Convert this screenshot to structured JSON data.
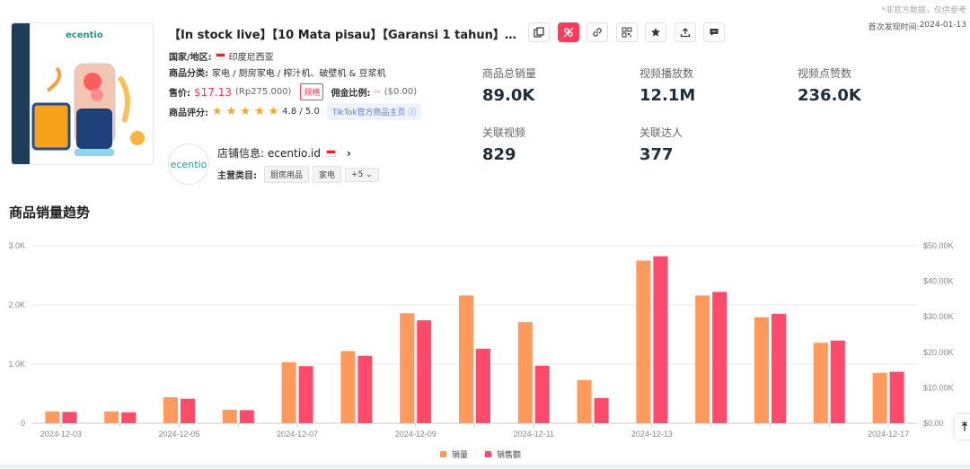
{
  "header": {
    "disclaimer": "*非官方数据，仅供参考",
    "first_found_label": "首次发现时间:",
    "first_found_value": "2024-01-13"
  },
  "product": {
    "image_brand": "ecentio",
    "title": "【In stock live】【10 Mata pisau】【Garansi 1 tahun】…",
    "country_label": "国家/地区:",
    "country_value": "印度尼西亚",
    "category_label": "商品分类:",
    "category_value": "家电 / 厨房家电 / 榨汁机、破壁机 & 豆浆机",
    "price_label": "售价:",
    "price_usd": "$17.13",
    "price_local": "(Rp275.000)",
    "spec_label": "规格",
    "commission_label": "佣金比例:",
    "commission_value": "--",
    "commission_amount": "($0.00)",
    "rating_label": "商品评分:",
    "rating_value": "4.8 / 5.0",
    "rating_stars": 5,
    "tiktok_link": "TikTok官方商品主页"
  },
  "shop": {
    "logo_text": "ecentio",
    "label": "店铺信息:",
    "name": "ecentio.id",
    "main_category_label": "主营类目:",
    "tags": [
      "厨房用品",
      "家电"
    ],
    "more_label": "+5"
  },
  "toolbar": {
    "buttons": [
      "copy-icon",
      "share-link-icon",
      "link-icon",
      "qrcode-icon",
      "star-icon",
      "upload-icon",
      "comment-icon"
    ]
  },
  "stats": [
    {
      "label": "商品总销量",
      "value": "89.0K"
    },
    {
      "label": "视频播放数",
      "value": "12.1M"
    },
    {
      "label": "视频点赞数",
      "value": "236.0K"
    },
    {
      "label": "关联视频",
      "value": "829"
    },
    {
      "label": "关联达人",
      "value": "377"
    }
  ],
  "section_title": "商品销量趋势",
  "chart_data": {
    "type": "bar",
    "categories": [
      "2024-12-03",
      "2024-12-04",
      "2024-12-05",
      "2024-12-06",
      "2024-12-07",
      "2024-12-08",
      "2024-12-09",
      "2024-12-10",
      "2024-12-11",
      "2024-12-12",
      "2024-12-13",
      "2024-12-14",
      "2024-12-15",
      "2024-12-16",
      "2024-12-17"
    ],
    "x_tick_labels": [
      "2024-12-03",
      "",
      "2024-12-05",
      "",
      "2024-12-07",
      "",
      "2024-12-09",
      "",
      "2024-12-11",
      "",
      "2024-12-13",
      "",
      "",
      "",
      "2024-12-17"
    ],
    "series": [
      {
        "name": "销量",
        "axis": "left",
        "color": "#ff9a5c",
        "values": [
          200,
          200,
          440,
          230,
          1030,
          1220,
          1860,
          2160,
          1710,
          730,
          2750,
          2160,
          1790,
          1360,
          850
        ]
      },
      {
        "name": "销售额",
        "axis": "right",
        "color": "#ff4a6b",
        "values": [
          3200,
          3100,
          6900,
          3700,
          16100,
          19000,
          29000,
          21000,
          16200,
          7100,
          47000,
          37000,
          30800,
          23300,
          14500
        ]
      }
    ],
    "y_left": {
      "ticks": [
        "0",
        "1.0K",
        "2.0K",
        "3.0K"
      ],
      "max": 3000
    },
    "y_right": {
      "ticks": [
        "$0.00",
        "$10.00K",
        "$20.00K",
        "$30.00K",
        "$40.00K",
        "$50.00K"
      ],
      "max": 50000
    },
    "grid": true,
    "legend_position": "bottom-center"
  }
}
